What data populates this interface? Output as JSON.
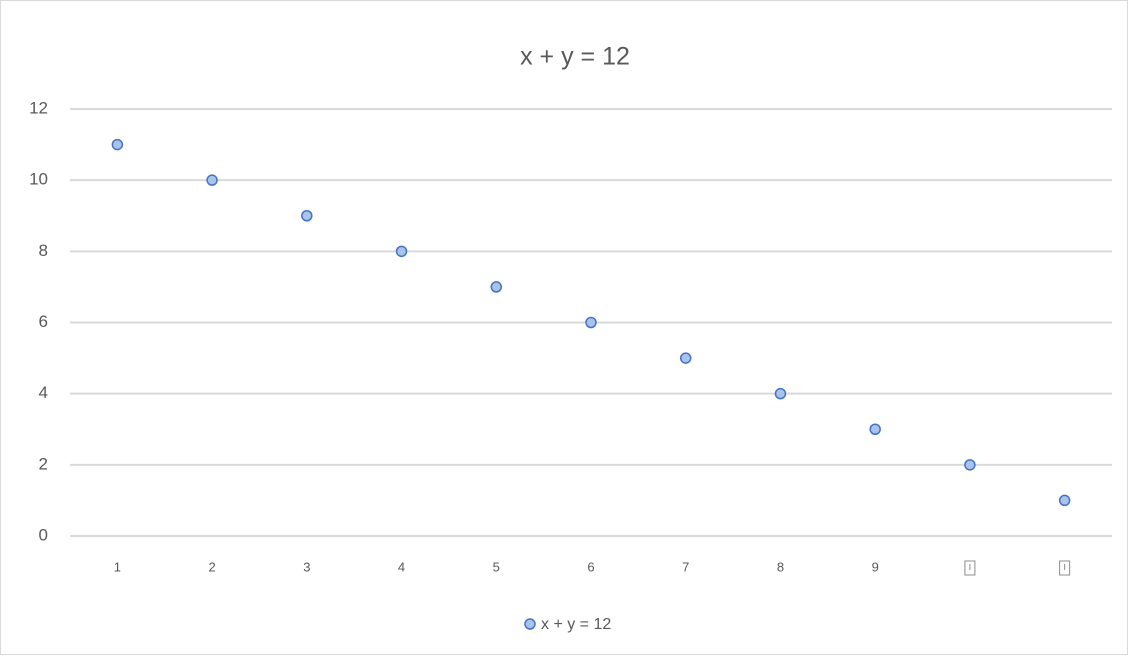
{
  "chart_data": {
    "type": "scatter",
    "title": "x + y = 12",
    "categories": [
      "1",
      "2",
      "3",
      "4",
      "5",
      "6",
      "7",
      "8",
      "9",
      null,
      null
    ],
    "series": [
      {
        "name": "x + y = 12",
        "color": "#4472c4",
        "values": [
          11,
          10,
          9,
          8,
          7,
          6,
          5,
          4,
          3,
          2,
          1
        ]
      }
    ],
    "ylim": [
      0,
      12
    ],
    "yticks": [
      0,
      2,
      4,
      6,
      8,
      10,
      12
    ],
    "grid": true,
    "legend": "bottom"
  }
}
